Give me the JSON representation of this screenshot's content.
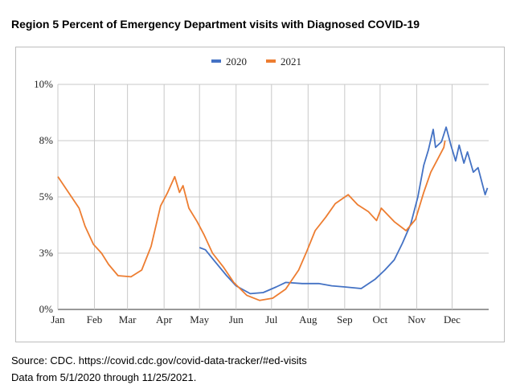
{
  "title": "Region 5 Percent of Emergency Department visits with Diagnosed COVID-19",
  "source_line1": "Source: CDC. https://covid.cdc.gov/covid-data-tracker/#ed-visits",
  "source_line2": "Data from 5/1/2020 through 11/25/2021.",
  "chart_data": {
    "type": "line",
    "title": "Region 5 Percent of Emergency Department visits with Diagnosed COVID-19",
    "xlabel": "",
    "ylabel": "",
    "x_unit": "day of year",
    "xlim": [
      0,
      365
    ],
    "ylim": [
      0,
      10
    ],
    "grid": true,
    "legend_position": "top-center",
    "x_ticks": [
      {
        "label": "Jan",
        "day": 0
      },
      {
        "label": "Feb",
        "day": 31
      },
      {
        "label": "Mar",
        "day": 59
      },
      {
        "label": "Apr",
        "day": 90
      },
      {
        "label": "May",
        "day": 120
      },
      {
        "label": "Jun",
        "day": 151
      },
      {
        "label": "Jul",
        "day": 181
      },
      {
        "label": "Aug",
        "day": 212
      },
      {
        "label": "Sep",
        "day": 243
      },
      {
        "label": "Oct",
        "day": 273
      },
      {
        "label": "Nov",
        "day": 304
      },
      {
        "label": "Dec",
        "day": 334
      }
    ],
    "y_ticks": [
      {
        "label": "0%",
        "value": 0
      },
      {
        "label": "3%",
        "value": 2.5
      },
      {
        "label": "5%",
        "value": 5
      },
      {
        "label": "8%",
        "value": 7.5
      },
      {
        "label": "10%",
        "value": 10
      }
    ],
    "series": [
      {
        "name": "2020",
        "color": "#4472c4",
        "x": [
          120,
          125,
          132,
          143,
          151,
          163,
          174,
          185,
          193,
          207,
          221,
          232,
          243,
          257,
          269,
          277,
          285,
          292,
          299,
          305,
          310,
          314,
          318,
          320,
          325,
          329,
          333,
          337,
          340,
          344,
          347,
          352,
          356,
          362,
          364
        ],
        "y": [
          2.75,
          2.65,
          2.2,
          1.5,
          1.05,
          0.7,
          0.75,
          1.0,
          1.2,
          1.15,
          1.15,
          1.05,
          1.0,
          0.93,
          1.35,
          1.75,
          2.2,
          2.95,
          3.8,
          5.0,
          6.4,
          7.1,
          8.0,
          7.2,
          7.45,
          8.1,
          7.3,
          6.6,
          7.3,
          6.5,
          7.0,
          6.1,
          6.3,
          5.1,
          5.4
        ]
      },
      {
        "name": "2021",
        "color": "#ed7d31",
        "x": [
          0,
          9,
          18,
          23,
          30,
          37,
          43,
          51,
          62,
          71,
          79,
          87,
          93,
          99,
          103,
          106,
          111,
          118,
          124,
          131,
          140,
          149,
          160,
          171,
          182,
          193,
          204,
          211,
          218,
          227,
          235,
          246,
          254,
          263,
          270,
          274,
          285,
          295,
          303,
          310,
          316,
          321,
          327,
          328
        ],
        "y": [
          5.9,
          5.2,
          4.5,
          3.7,
          2.9,
          2.5,
          2.0,
          1.5,
          1.45,
          1.75,
          2.8,
          4.6,
          5.2,
          5.9,
          5.2,
          5.5,
          4.5,
          3.9,
          3.3,
          2.5,
          1.9,
          1.2,
          0.63,
          0.4,
          0.5,
          0.9,
          1.75,
          2.6,
          3.5,
          4.1,
          4.7,
          5.1,
          4.65,
          4.35,
          3.95,
          4.5,
          3.9,
          3.5,
          4.0,
          5.2,
          6.1,
          6.6,
          7.2,
          7.5
        ]
      }
    ]
  }
}
